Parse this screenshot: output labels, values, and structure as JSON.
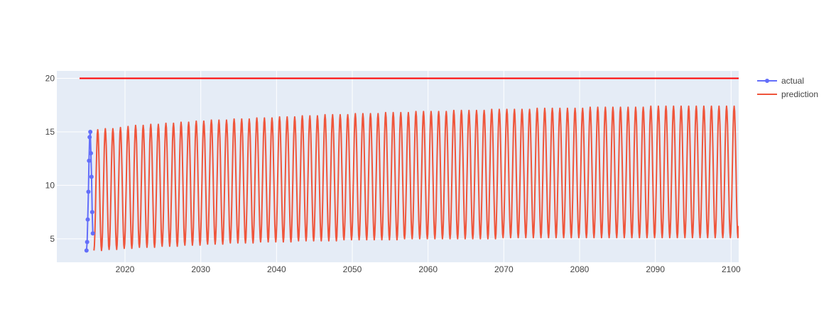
{
  "chart_data": {
    "type": "line",
    "title": "",
    "xlabel": "",
    "ylabel": "",
    "xlim": [
      2011.0,
      2101.0
    ],
    "ylim": [
      2.8,
      20.7
    ],
    "x_ticks": [
      2020,
      2030,
      2040,
      2050,
      2060,
      2070,
      2080,
      2090,
      2100
    ],
    "y_ticks": [
      5,
      10,
      15,
      20
    ],
    "grid": true,
    "legend": {
      "position": "top-right",
      "entries": [
        "actual",
        "prediction"
      ]
    },
    "colors": {
      "actual": "#636efa",
      "prediction": "#ef553b",
      "cap": "#ff0000",
      "plot_bg": "#e5ecf6"
    },
    "cap_line": {
      "y": 20,
      "x_start": 2014.0,
      "x_end": 2101.0
    },
    "series": [
      {
        "name": "actual",
        "mode": "lines+markers",
        "x": [
          2014.92,
          2015.0,
          2015.08,
          2015.17,
          2015.25,
          2015.33,
          2015.42,
          2015.5,
          2015.58,
          2015.67,
          2015.75
        ],
        "y": [
          3.9,
          4.7,
          6.8,
          9.4,
          12.3,
          14.5,
          15.0,
          13.0,
          10.8,
          7.5,
          5.5
        ]
      },
      {
        "name": "prediction",
        "mode": "lines",
        "x_start": 2015.9,
        "x_end": 2101.0,
        "period_years": 1.0,
        "peaks": [
          15.2,
          15.3,
          15.3,
          15.4,
          15.5,
          15.6,
          15.6,
          15.7,
          15.7,
          15.8,
          15.8,
          15.9,
          15.9,
          16.0,
          16.0,
          16.1,
          16.1,
          16.1,
          16.2,
          16.2,
          16.2,
          16.3,
          16.3,
          16.3,
          16.4,
          16.4,
          16.4,
          16.5,
          16.5,
          16.5,
          16.6,
          16.6,
          16.6,
          16.6,
          16.7,
          16.7,
          16.7,
          16.7,
          16.8,
          16.8,
          16.8,
          16.8,
          16.9,
          16.9,
          16.9,
          16.9,
          16.9,
          17.0,
          17.0,
          17.0,
          17.0,
          17.0,
          17.1,
          17.1,
          17.1,
          17.1,
          17.1,
          17.1,
          17.2,
          17.2,
          17.2,
          17.2,
          17.2,
          17.2,
          17.2,
          17.3,
          17.3,
          17.3,
          17.3,
          17.3,
          17.3,
          17.3,
          17.3,
          17.4,
          17.4,
          17.4,
          17.4,
          17.4,
          17.4,
          17.4,
          17.4,
          17.4,
          17.4,
          17.4,
          17.4,
          17.5
        ],
        "troughs": [
          3.9,
          3.9,
          4.0,
          4.0,
          4.1,
          4.1,
          4.2,
          4.2,
          4.2,
          4.3,
          4.3,
          4.3,
          4.4,
          4.4,
          4.4,
          4.5,
          4.5,
          4.5,
          4.6,
          4.6,
          4.6,
          4.6,
          4.7,
          4.7,
          4.7,
          4.7,
          4.7,
          4.8,
          4.8,
          4.8,
          4.8,
          4.8,
          4.8,
          4.9,
          4.9,
          4.9,
          4.9,
          4.9,
          4.9,
          4.9,
          4.9,
          5.0,
          5.0,
          5.0,
          5.0,
          5.0,
          5.0,
          5.0,
          5.0,
          5.0,
          5.0,
          5.0,
          5.0,
          5.0,
          5.1,
          5.1,
          5.1,
          5.1,
          5.1,
          5.1,
          5.1,
          5.1,
          5.1,
          5.1,
          5.1,
          5.1,
          5.1,
          5.1,
          5.1,
          5.1,
          5.1,
          5.1,
          5.1,
          5.1,
          5.1,
          5.1,
          5.1,
          5.1,
          5.1,
          5.1,
          5.1,
          5.1,
          5.1,
          5.1,
          5.1,
          5.1
        ],
        "end_y": 6.2
      }
    ]
  }
}
